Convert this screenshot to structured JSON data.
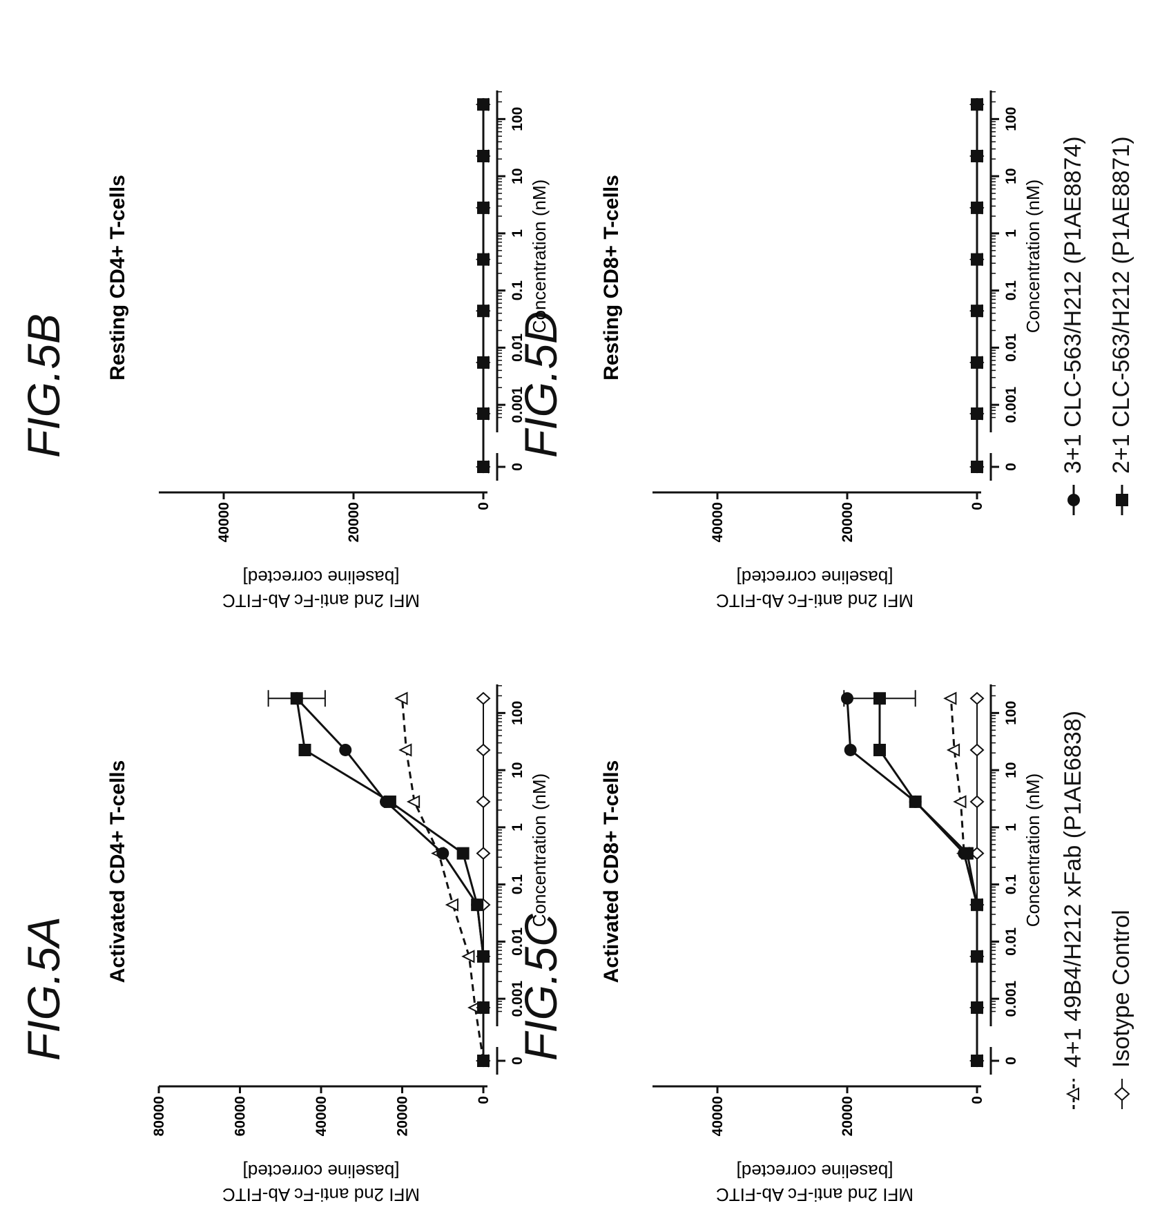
{
  "figures": {
    "fig5a": "FIG.5A",
    "fig5b": "FIG.5B",
    "fig5c": "FIG.5C",
    "fig5d": "FIG.5D"
  },
  "legend": [
    {
      "key": "s4",
      "label": "4+1 49B4/H212 xFab (P1AE6838)",
      "marker": "triangle-open",
      "line": "dashed"
    },
    {
      "key": "iso",
      "label": "Isotype Control",
      "marker": "diamond-open",
      "line": "solid"
    },
    {
      "key": "s3",
      "label": "3+1 CLC-563/H212 (P1AE8874)",
      "marker": "circle-filled",
      "line": "solid"
    },
    {
      "key": "s2",
      "label": "2+1 CLC-563/H212 (P1AE8871)",
      "marker": "square-filled",
      "line": "solid"
    }
  ],
  "chart_data": [
    {
      "id": "A",
      "type": "line",
      "title": "Activated  CD4+ T-cells",
      "xlabel": "Concentration (nM)",
      "ylabel_line1": "MFI 2nd anti-Fc Ab-FITC",
      "ylabel_line2": "[baseline corrected]",
      "x_scale": "log (with 0 shown separately)",
      "xticks": [
        "0",
        "0.001",
        "0.01",
        "0.1",
        "1",
        "10",
        "100"
      ],
      "ylim": [
        0,
        80000
      ],
      "yticks": [
        "0",
        "20000",
        "40000",
        "60000",
        "80000"
      ],
      "x": [
        0,
        0.0007,
        0.0055,
        0.044,
        0.35,
        2.8,
        22.5,
        180
      ],
      "series": [
        {
          "key": "s4",
          "values": [
            0,
            2000,
            3500,
            7500,
            11000,
            17000,
            19000,
            20000
          ]
        },
        {
          "key": "iso",
          "values": [
            0,
            0,
            0,
            0,
            0,
            0,
            0,
            0
          ]
        },
        {
          "key": "s3",
          "values": [
            0,
            0,
            0,
            1500,
            10000,
            24000,
            34000,
            46000
          ]
        },
        {
          "key": "s2",
          "values": [
            0,
            0,
            0,
            1500,
            5000,
            23000,
            44000,
            46000
          ],
          "error_last": 7000
        }
      ]
    },
    {
      "id": "B",
      "type": "line",
      "title": "Resting  CD4+ T-cells",
      "xlabel": "Concentration (nM)",
      "ylabel_line1": "MFI 2nd anti-Fc Ab-FITC",
      "ylabel_line2": "[baseline corrected]",
      "x_scale": "log (with 0 shown separately)",
      "xticks": [
        "0",
        "0.001",
        "0.01",
        "0.1",
        "1",
        "10",
        "100"
      ],
      "ylim": [
        0,
        50000
      ],
      "yticks": [
        "0",
        "20000",
        "40000"
      ],
      "x": [
        0,
        0.0007,
        0.0055,
        0.044,
        0.35,
        2.8,
        22.5,
        180
      ],
      "series": [
        {
          "key": "s4",
          "values": [
            0,
            0,
            0,
            0,
            0,
            0,
            0,
            0
          ]
        },
        {
          "key": "iso",
          "values": [
            0,
            0,
            0,
            0,
            0,
            0,
            0,
            0
          ]
        },
        {
          "key": "s3",
          "values": [
            0,
            0,
            0,
            0,
            0,
            0,
            0,
            0
          ]
        },
        {
          "key": "s2",
          "values": [
            0,
            0,
            0,
            0,
            0,
            0,
            0,
            0
          ]
        }
      ]
    },
    {
      "id": "C",
      "type": "line",
      "title": "Activated  CD8+ T-cells",
      "xlabel": "Concentration (nM)",
      "ylabel_line1": "MFI 2nd anti-Fc Ab-FITC",
      "ylabel_line2": "[baseline corrected]",
      "x_scale": "log (with 0 shown separately)",
      "xticks": [
        "0",
        "0.001",
        "0.01",
        "0.1",
        "1",
        "10",
        "100"
      ],
      "ylim": [
        0,
        50000
      ],
      "yticks": [
        "0",
        "20000",
        "40000"
      ],
      "x": [
        0,
        0.0007,
        0.0055,
        0.044,
        0.35,
        2.8,
        22.5,
        180
      ],
      "series": [
        {
          "key": "s4",
          "values": [
            0,
            0,
            0,
            0,
            2000,
            2500,
            3500,
            4000
          ]
        },
        {
          "key": "iso",
          "values": [
            0,
            0,
            0,
            0,
            0,
            0,
            0,
            0
          ]
        },
        {
          "key": "s3",
          "values": [
            0,
            0,
            0,
            0,
            2000,
            9500,
            19500,
            20000
          ]
        },
        {
          "key": "s2",
          "values": [
            0,
            0,
            0,
            0,
            1500,
            9500,
            15000,
            15000
          ],
          "error_last": 5500
        }
      ]
    },
    {
      "id": "D",
      "type": "line",
      "title": "Resting  CD8+ T-cells",
      "xlabel": "Concentration (nM)",
      "ylabel_line1": "MFI 2nd anti-Fc Ab-FITC",
      "ylabel_line2": "[baseline corrected]",
      "x_scale": "log (with 0 shown separately)",
      "xticks": [
        "0",
        "0.001",
        "0.01",
        "0.1",
        "1",
        "10",
        "100"
      ],
      "ylim": [
        0,
        50000
      ],
      "yticks": [
        "0",
        "20000",
        "40000"
      ],
      "x": [
        0,
        0.0007,
        0.0055,
        0.044,
        0.35,
        2.8,
        22.5,
        180
      ],
      "series": [
        {
          "key": "s4",
          "values": [
            0,
            0,
            0,
            0,
            0,
            0,
            0,
            0
          ]
        },
        {
          "key": "iso",
          "values": [
            0,
            0,
            0,
            0,
            0,
            0,
            0,
            0
          ]
        },
        {
          "key": "s3",
          "values": [
            0,
            0,
            0,
            0,
            0,
            0,
            0,
            0
          ]
        },
        {
          "key": "s2",
          "values": [
            0,
            0,
            0,
            0,
            0,
            0,
            0,
            0
          ]
        }
      ]
    }
  ]
}
